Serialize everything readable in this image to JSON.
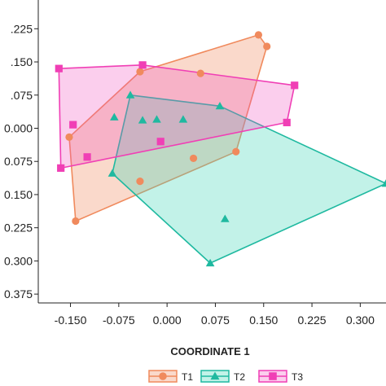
{
  "chart_data": {
    "type": "scatter",
    "xlabel": "COORDINATE 1",
    "ylabel": "",
    "x_ticks": [
      -0.15,
      -0.075,
      0.0,
      0.075,
      0.15,
      0.225,
      0.3
    ],
    "x_tick_labels": [
      "-0.150",
      "-0.075",
      "0.000",
      "0.075",
      "0.150",
      "0.225",
      "0.300"
    ],
    "y_ticks": [
      0.225,
      0.15,
      0.075,
      0.0,
      -0.075,
      -0.15,
      -0.225,
      -0.3,
      -0.375
    ],
    "y_tick_labels": [
      ".225",
      ".150",
      ".075",
      "0.000",
      "0.075",
      "0.150",
      "0.225",
      "0.300",
      "0.375"
    ],
    "xlim": [
      -0.2,
      0.34
    ],
    "ylim": [
      -0.395,
      0.29
    ],
    "grid": false,
    "legend_position": "bottom",
    "series": [
      {
        "name": "T1",
        "marker": "circle",
        "color": "#f08a5d",
        "fill": "rgba(240,138,93,0.32)",
        "points": [
          [
            -0.152,
            -0.02
          ],
          [
            -0.042,
            0.128
          ],
          [
            0.052,
            0.124
          ],
          [
            0.142,
            0.211
          ],
          [
            0.155,
            0.185
          ],
          [
            0.107,
            -0.053
          ],
          [
            0.041,
            -0.068
          ],
          [
            -0.042,
            -0.12
          ],
          [
            -0.142,
            -0.21
          ]
        ],
        "hull": [
          [
            -0.152,
            -0.02
          ],
          [
            -0.042,
            0.128
          ],
          [
            0.142,
            0.211
          ],
          [
            0.155,
            0.185
          ],
          [
            0.107,
            -0.053
          ],
          [
            -0.142,
            -0.21
          ]
        ]
      },
      {
        "name": "T2",
        "marker": "triangle",
        "color": "#1fb9a0",
        "fill": "rgba(64,215,185,0.32)",
        "points": [
          [
            -0.057,
            0.075
          ],
          [
            -0.082,
            0.025
          ],
          [
            -0.038,
            0.018
          ],
          [
            -0.016,
            0.02
          ],
          [
            0.025,
            0.02
          ],
          [
            0.082,
            0.05
          ],
          [
            -0.085,
            -0.102
          ],
          [
            0.067,
            -0.305
          ],
          [
            0.09,
            -0.205
          ],
          [
            0.34,
            -0.125
          ]
        ],
        "hull": [
          [
            -0.057,
            0.075
          ],
          [
            0.082,
            0.05
          ],
          [
            0.34,
            -0.125
          ],
          [
            0.067,
            -0.305
          ],
          [
            -0.085,
            -0.102
          ]
        ]
      },
      {
        "name": "T3",
        "marker": "square",
        "color": "#f03fb5",
        "fill": "rgba(240,80,190,0.28)",
        "points": [
          [
            -0.168,
            0.135
          ],
          [
            -0.038,
            0.143
          ],
          [
            0.198,
            0.097
          ],
          [
            0.186,
            0.013
          ],
          [
            -0.146,
            0.008
          ],
          [
            -0.124,
            -0.065
          ],
          [
            -0.01,
            -0.03
          ],
          [
            -0.165,
            -0.09
          ]
        ],
        "hull": [
          [
            -0.168,
            0.135
          ],
          [
            -0.038,
            0.143
          ],
          [
            0.198,
            0.097
          ],
          [
            0.186,
            0.013
          ],
          [
            -0.165,
            -0.09
          ]
        ]
      }
    ]
  }
}
